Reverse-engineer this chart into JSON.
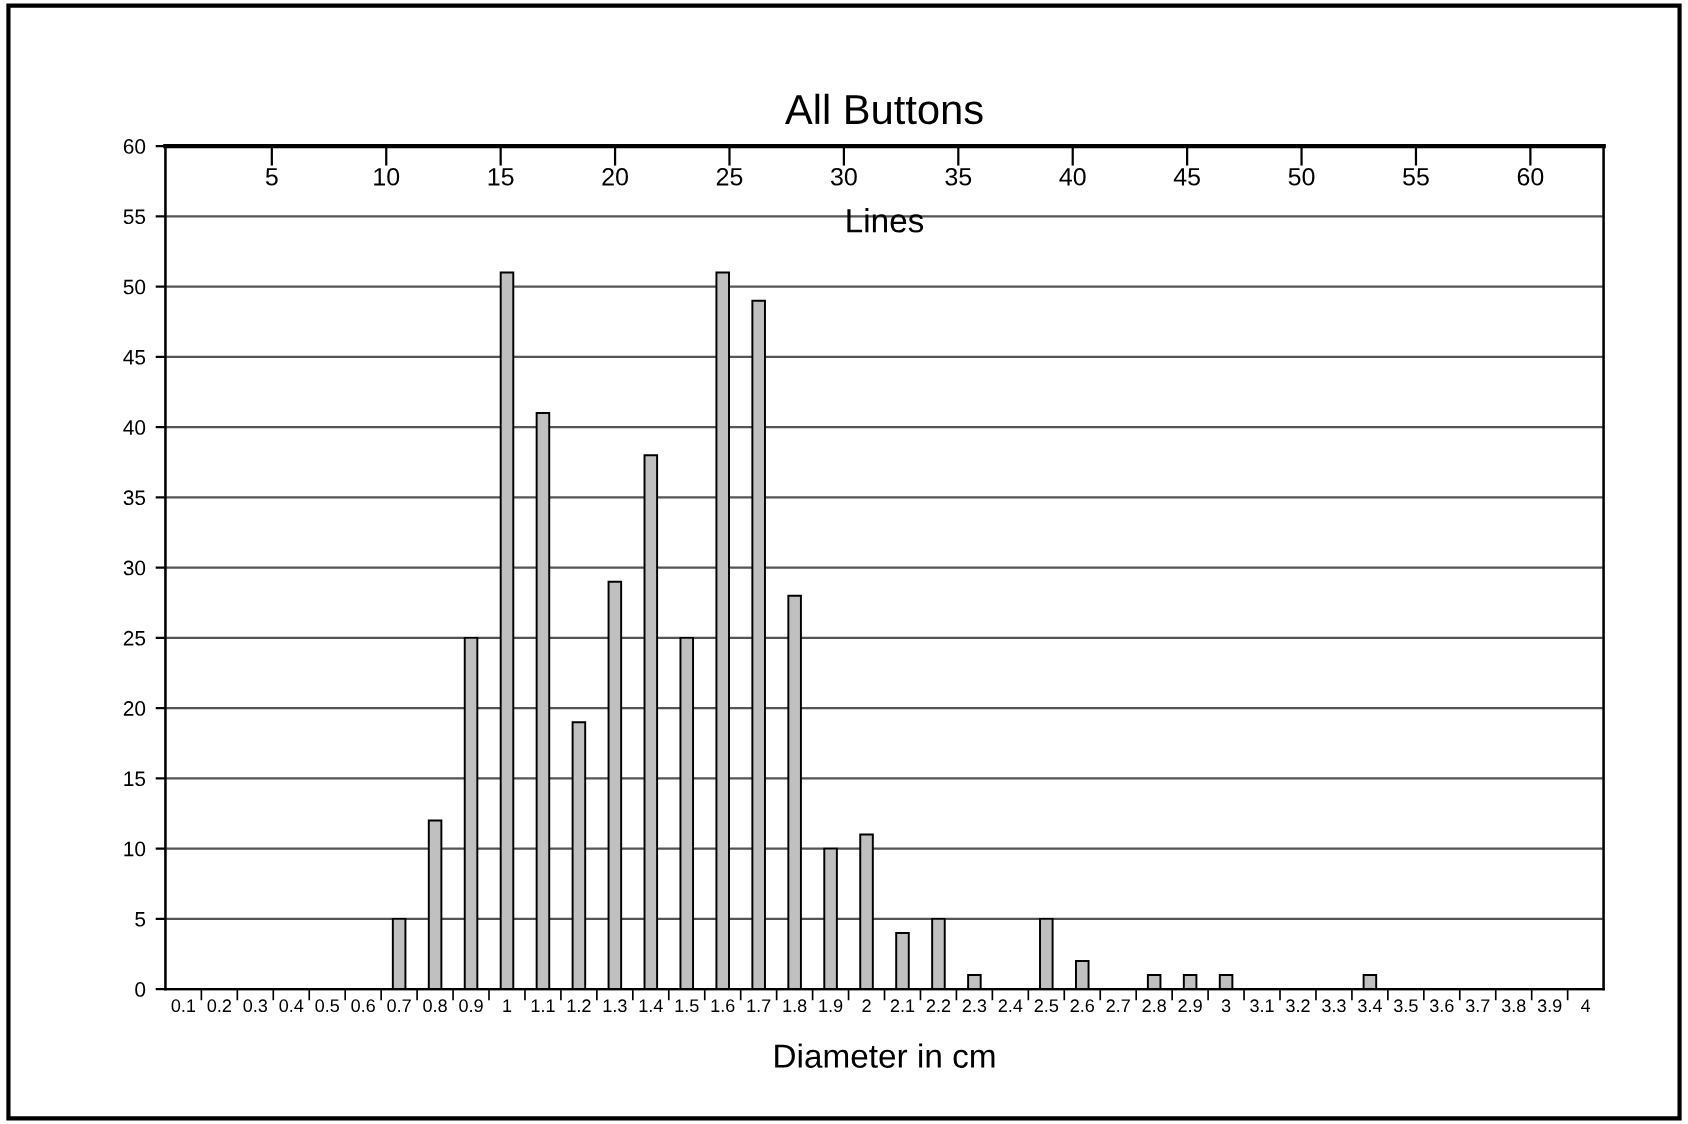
{
  "chart_data": {
    "type": "bar",
    "title": "All Buttons",
    "xlabel": "Diameter in cm",
    "x2label": "Lines",
    "categories": [
      "0.1",
      "0.2",
      "0.3",
      "0.4",
      "0.5",
      "0.6",
      "0.7",
      "0.8",
      "0.9",
      "1",
      "1.1",
      "1.2",
      "1.3",
      "1.4",
      "1.5",
      "1.6",
      "1.7",
      "1.8",
      "1.9",
      "2",
      "2.1",
      "2.2",
      "2.3",
      "2.4",
      "2.5",
      "2.6",
      "2.7",
      "2.8",
      "2.9",
      "3",
      "3.1",
      "3.2",
      "3.3",
      "3.4",
      "3.5",
      "3.6",
      "3.7",
      "3.8",
      "3.9",
      "4"
    ],
    "values": [
      0,
      0,
      0,
      0,
      0,
      0,
      5,
      12,
      25,
      51,
      41,
      19,
      29,
      38,
      25,
      51,
      49,
      28,
      10,
      11,
      4,
      5,
      1,
      0,
      5,
      2,
      0,
      1,
      1,
      1,
      0,
      0,
      0,
      1,
      0,
      0,
      0,
      0,
      0,
      0
    ],
    "color": "#c0c0c0",
    "ylim": [
      0,
      60
    ],
    "yticks": [
      0,
      5,
      10,
      15,
      20,
      25,
      30,
      35,
      40,
      45,
      50,
      55,
      60
    ],
    "x2lim": [
      0.35,
      63.2
    ],
    "x2ticks": [
      5,
      10,
      15,
      20,
      25,
      30,
      35,
      40,
      45,
      50,
      55,
      60
    ],
    "grid": "y"
  }
}
